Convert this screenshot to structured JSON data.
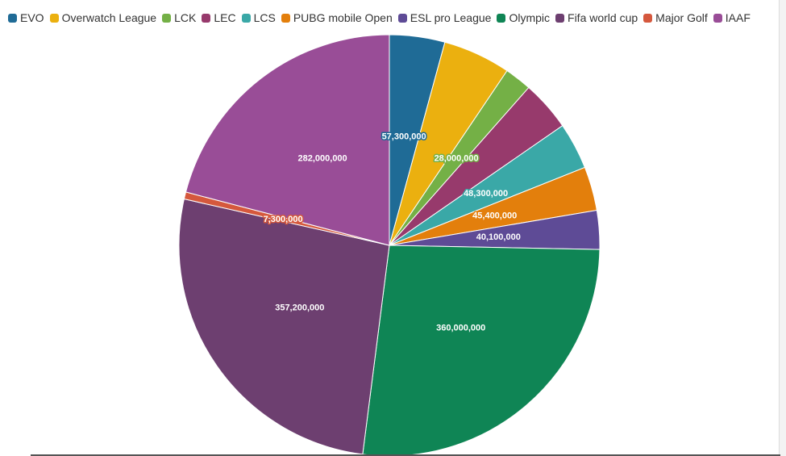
{
  "chart_data": {
    "type": "pie",
    "title": "",
    "legend_position": "top-left",
    "categories": [
      "EVO",
      "Overwatch League",
      "LCK",
      "LEC",
      "LCS",
      "PUBG mobile Open",
      "ESL pro League",
      "Olympic",
      "Fifa world cup",
      "Major Golf",
      "IAAF"
    ],
    "values": [
      57300000,
      70000000,
      28000000,
      52000000,
      48300000,
      45400000,
      40100000,
      360000000,
      357200000,
      7300000,
      282000000
    ],
    "value_labels": [
      "57,300,000",
      "",
      "28,000,000",
      "",
      "48,300,000",
      "45,400,000",
      "40,100,000",
      "360,000,000",
      "357,200,000",
      "7,300,000",
      "282,000,000"
    ],
    "colors": [
      "#1f6b96",
      "#ebb00f",
      "#74b046",
      "#973a6c",
      "#3aa8a7",
      "#e37f0c",
      "#5e4b96",
      "#0f8555",
      "#6d3f70",
      "#d5583d",
      "#994d97"
    ],
    "start_angle": "12 o'clock",
    "direction": "clockwise"
  }
}
